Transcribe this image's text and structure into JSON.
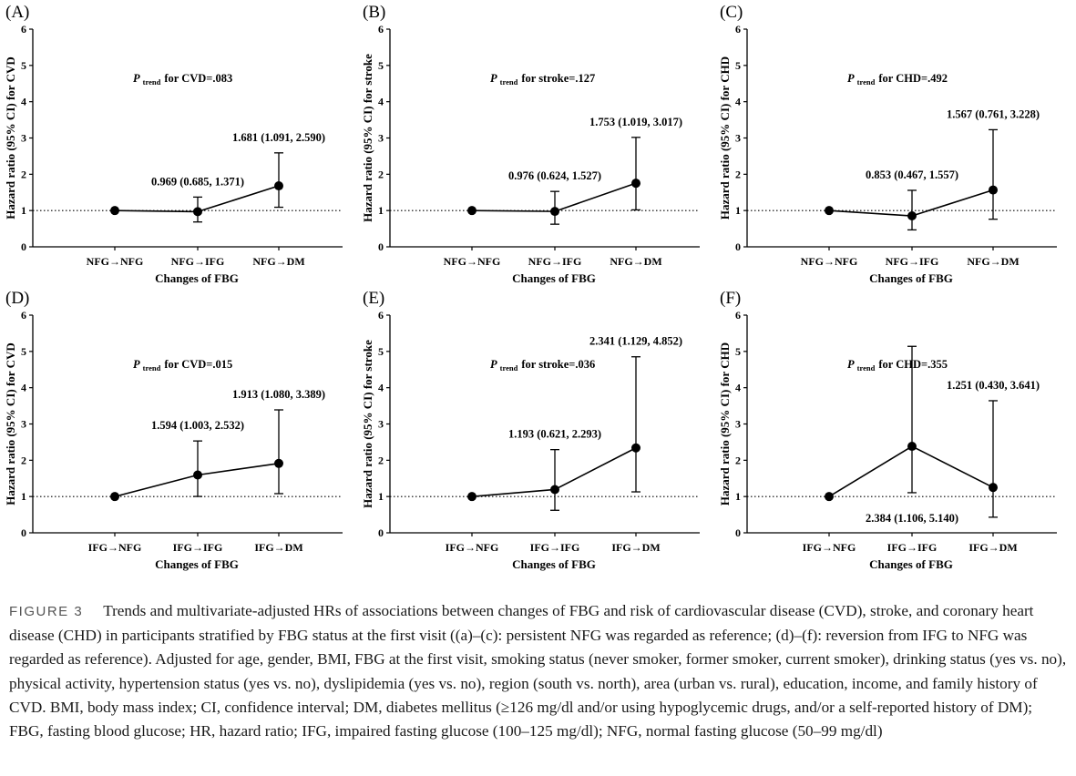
{
  "chart_data": [
    {
      "type": "line",
      "panel_label": "(A)",
      "categories": [
        "NFG→NFG",
        "NFG→IFG",
        "NFG→DM"
      ],
      "values": [
        1.0,
        0.969,
        1.681
      ],
      "ci_lower": [
        null,
        0.685,
        1.091
      ],
      "ci_upper": [
        null,
        1.371,
        2.59
      ],
      "data_labels": [
        "",
        "0.969 (0.685, 1.371)",
        "1.681 (1.091, 2.590)"
      ],
      "label_pos": [
        "",
        "above",
        "above"
      ],
      "p_trend": {
        "prefix": "P",
        "subscript": "trend",
        "text": "for CVD=.083"
      },
      "xlabel": "Changes of FBG",
      "ylabel": "Hazard ratio (95% CI) for CVD",
      "ylim": [
        0,
        6
      ],
      "yticks": [
        "0",
        "1",
        "2",
        "3",
        "4",
        "5",
        "6"
      ],
      "reference_line": 1
    },
    {
      "type": "line",
      "panel_label": "(B)",
      "categories": [
        "NFG→NFG",
        "NFG→IFG",
        "NFG→DM"
      ],
      "values": [
        1.0,
        0.976,
        1.753
      ],
      "ci_lower": [
        null,
        0.624,
        1.019
      ],
      "ci_upper": [
        null,
        1.527,
        3.017
      ],
      "data_labels": [
        "",
        "0.976 (0.624, 1.527)",
        "1.753 (1.019, 3.017)"
      ],
      "label_pos": [
        "",
        "above",
        "above"
      ],
      "p_trend": {
        "prefix": "P",
        "subscript": "trend",
        "text": "for stroke=.127"
      },
      "xlabel": "Changes of FBG",
      "ylabel": "Hazard ratio (95% CI) for stroke",
      "ylim": [
        0,
        6
      ],
      "yticks": [
        "0",
        "1",
        "2",
        "3",
        "4",
        "5",
        "6"
      ],
      "reference_line": 1
    },
    {
      "type": "line",
      "panel_label": "(C)",
      "categories": [
        "NFG→NFG",
        "NFG→IFG",
        "NFG→DM"
      ],
      "values": [
        1.0,
        0.853,
        1.567
      ],
      "ci_lower": [
        null,
        0.467,
        0.761
      ],
      "ci_upper": [
        null,
        1.557,
        3.228
      ],
      "data_labels": [
        "",
        "0.853 (0.467, 1.557)",
        "1.567 (0.761, 3.228)"
      ],
      "label_pos": [
        "",
        "above",
        "above"
      ],
      "p_trend": {
        "prefix": "P",
        "subscript": "trend",
        "text": "for CHD=.492"
      },
      "xlabel": "Changes of FBG",
      "ylabel": "Hazard ratio (95% CI) for CHD",
      "ylim": [
        0,
        6
      ],
      "yticks": [
        "0",
        "1",
        "2",
        "3",
        "4",
        "5",
        "6"
      ],
      "reference_line": 1
    },
    {
      "type": "line",
      "panel_label": "(D)",
      "categories": [
        "IFG→NFG",
        "IFG→IFG",
        "IFG→DM"
      ],
      "values": [
        1.0,
        1.594,
        1.913
      ],
      "ci_lower": [
        null,
        1.003,
        1.08
      ],
      "ci_upper": [
        null,
        2.532,
        3.389
      ],
      "data_labels": [
        "",
        "1.594 (1.003, 2.532)",
        "1.913 (1.080, 3.389)"
      ],
      "label_pos": [
        "",
        "above",
        "above"
      ],
      "p_trend": {
        "prefix": "P",
        "subscript": "trend",
        "text": "for CVD=.015"
      },
      "xlabel": "Changes of FBG",
      "ylabel": "Hazard ratio (95% CI) for CVD",
      "ylim": [
        0,
        6
      ],
      "yticks": [
        "0",
        "1",
        "2",
        "3",
        "4",
        "5",
        "6"
      ],
      "reference_line": 1
    },
    {
      "type": "line",
      "panel_label": "(E)",
      "categories": [
        "IFG→NFG",
        "IFG→IFG",
        "IFG→DM"
      ],
      "values": [
        1.0,
        1.193,
        2.341
      ],
      "ci_lower": [
        null,
        0.621,
        1.129
      ],
      "ci_upper": [
        null,
        2.293,
        4.852
      ],
      "data_labels": [
        "",
        "1.193 (0.621, 2.293)",
        "2.341 (1.129, 4.852)"
      ],
      "label_pos": [
        "",
        "above",
        "above"
      ],
      "p_trend": {
        "prefix": "P",
        "subscript": "trend",
        "text": "for stroke=.036"
      },
      "xlabel": "Changes of FBG",
      "ylabel": "Hazard ratio (95% CI) for stroke",
      "ylim": [
        0,
        6
      ],
      "yticks": [
        "0",
        "1",
        "2",
        "3",
        "4",
        "5",
        "6"
      ],
      "reference_line": 1
    },
    {
      "type": "line",
      "panel_label": "(F)",
      "categories": [
        "IFG→NFG",
        "IFG→IFG",
        "IFG→DM"
      ],
      "values": [
        1.0,
        2.384,
        1.251
      ],
      "ci_lower": [
        null,
        1.106,
        0.43
      ],
      "ci_upper": [
        null,
        5.14,
        3.641
      ],
      "data_labels": [
        "",
        "2.384 (1.106, 5.140)",
        "1.251 (0.430, 3.641)"
      ],
      "label_pos": [
        "",
        "below",
        "above"
      ],
      "p_trend": {
        "prefix": "P",
        "subscript": "trend",
        "text": "for CHD=.355"
      },
      "xlabel": "Changes of FBG",
      "ylabel": "Hazard ratio (95% CI) for CHD",
      "ylim": [
        0,
        6
      ],
      "yticks": [
        "0",
        "1",
        "2",
        "3",
        "4",
        "5",
        "6"
      ],
      "reference_line": 1
    }
  ],
  "caption": {
    "figure_label": "FIGURE 3",
    "text": "Trends and multivariate-adjusted HRs of associations between changes of FBG and risk of cardiovascular disease (CVD), stroke, and coronary heart disease (CHD) in participants stratified by FBG status at the first visit ((a)–(c): persistent NFG was regarded as reference; (d)–(f): reversion from IFG to NFG was regarded as reference). Adjusted for age, gender, BMI, FBG at the first visit, smoking status (never smoker, former smoker, current smoker), drinking status (yes vs. no), physical activity, hypertension status (yes vs. no), dyslipidemia (yes vs. no), region (south vs. north), area (urban vs. rural), education, income, and family history of CVD. BMI, body mass index; CI, confidence interval; DM, diabetes mellitus (≥126 mg/dl and/or using hypoglycemic drugs, and/or a self-reported history of DM); FBG, fasting blood glucose; HR, hazard ratio; IFG, impaired fasting glucose (100–125 mg/dl); NFG, normal fasting glucose (50–99 mg/dl)"
  }
}
